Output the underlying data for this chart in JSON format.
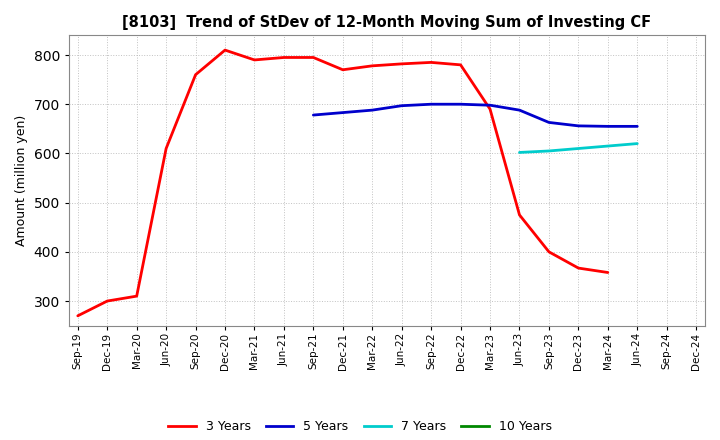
{
  "title": "[8103]  Trend of StDev of 12-Month Moving Sum of Investing CF",
  "ylabel": "Amount (million yen)",
  "background_color": "#ffffff",
  "grid_color": "#bbbbbb",
  "xlabels": [
    "Sep-19",
    "Dec-19",
    "Mar-20",
    "Jun-20",
    "Sep-20",
    "Dec-20",
    "Mar-21",
    "Jun-21",
    "Sep-21",
    "Dec-21",
    "Mar-22",
    "Jun-22",
    "Sep-22",
    "Dec-22",
    "Mar-23",
    "Jun-23",
    "Sep-23",
    "Dec-23",
    "Mar-24",
    "Jun-24",
    "Sep-24",
    "Dec-24"
  ],
  "ylim": [
    250,
    840
  ],
  "yticks": [
    300,
    400,
    500,
    600,
    700,
    800
  ],
  "series": {
    "3 Years": {
      "color": "#ff0000",
      "x": [
        0,
        1,
        2,
        3,
        4,
        5,
        6,
        7,
        8,
        9,
        10,
        11,
        12,
        13,
        14,
        15,
        16,
        17,
        18
      ],
      "y": [
        270,
        300,
        310,
        610,
        760,
        810,
        790,
        795,
        795,
        770,
        778,
        782,
        785,
        780,
        690,
        475,
        400,
        367,
        358
      ]
    },
    "5 Years": {
      "color": "#0000cc",
      "x": [
        8,
        9,
        10,
        11,
        12,
        13,
        14,
        15,
        16,
        17,
        18,
        19
      ],
      "y": [
        678,
        683,
        688,
        697,
        700,
        700,
        698,
        688,
        663,
        656,
        655,
        655
      ]
    },
    "7 Years": {
      "color": "#00cccc",
      "x": [
        15,
        16,
        17,
        18,
        19
      ],
      "y": [
        602,
        605,
        610,
        615,
        620
      ]
    },
    "10 Years": {
      "color": "#008800",
      "x": [],
      "y": []
    }
  },
  "legend_labels": [
    "3 Years",
    "5 Years",
    "7 Years",
    "10 Years"
  ],
  "legend_colors": [
    "#ff0000",
    "#0000cc",
    "#00cccc",
    "#008800"
  ],
  "linewidths": [
    2.0,
    2.0,
    2.0,
    2.0
  ]
}
